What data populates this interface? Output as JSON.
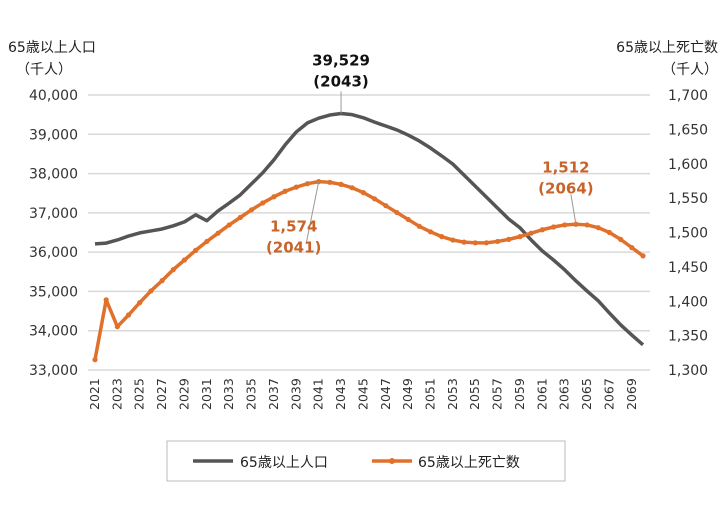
{
  "chart_data": {
    "type": "line",
    "title": "",
    "ylabel_left": [
      "65歳以上人口",
      "（千人）"
    ],
    "ylabel_right": [
      "65歳以上死亡数",
      "（千人）"
    ],
    "ylim_left": [
      33000,
      40000
    ],
    "ylim_right": [
      1300,
      1700
    ],
    "yticks_left": [
      "40,000",
      "39,000",
      "38,000",
      "37,000",
      "36,000",
      "35,000",
      "34,000",
      "33,000"
    ],
    "yticks_right": [
      "1,700",
      "1,650",
      "1,600",
      "1,550",
      "1,500",
      "1,450",
      "1,400",
      "1,350",
      "1,300"
    ],
    "x": [
      2021,
      2022,
      2023,
      2024,
      2025,
      2026,
      2027,
      2028,
      2029,
      2030,
      2031,
      2032,
      2033,
      2034,
      2035,
      2036,
      2037,
      2038,
      2039,
      2040,
      2041,
      2042,
      2043,
      2044,
      2045,
      2046,
      2047,
      2048,
      2049,
      2050,
      2051,
      2052,
      2053,
      2054,
      2055,
      2056,
      2057,
      2058,
      2059,
      2060,
      2061,
      2062,
      2063,
      2064,
      2065,
      2066,
      2067,
      2068,
      2069,
      2070
    ],
    "xtick_labels": [
      "2021",
      "2023",
      "2025",
      "2027",
      "2029",
      "2031",
      "2033",
      "2035",
      "2037",
      "2039",
      "2041",
      "2043",
      "2045",
      "2047",
      "2049",
      "2051",
      "2053",
      "2055",
      "2057",
      "2059",
      "2061",
      "2063",
      "2065",
      "2067",
      "2069"
    ],
    "grid": true,
    "legend_position": "bottom",
    "series": [
      {
        "name": "65歳以上人口",
        "axis": "left",
        "color": "#555555",
        "values": [
          36210,
          36230,
          36310,
          36410,
          36490,
          36540,
          36590,
          36670,
          36770,
          36950,
          36800,
          37050,
          37250,
          37460,
          37740,
          38020,
          38350,
          38730,
          39060,
          39290,
          39410,
          39490,
          39529,
          39500,
          39420,
          39310,
          39210,
          39110,
          38980,
          38830,
          38650,
          38450,
          38240,
          37960,
          37680,
          37400,
          37120,
          36840,
          36620,
          36310,
          36030,
          35800,
          35550,
          35270,
          35010,
          34760,
          34450,
          34150,
          33890,
          33640
        ]
      },
      {
        "name": "65歳以上死亡数",
        "axis": "right",
        "color": "#E0702A",
        "values": [
          1315,
          1402,
          1363,
          1380,
          1398,
          1415,
          1430,
          1446,
          1460,
          1474,
          1487,
          1499,
          1511,
          1522,
          1533,
          1543,
          1552,
          1560,
          1566,
          1571,
          1574,
          1573,
          1570,
          1565,
          1558,
          1549,
          1539,
          1529,
          1519,
          1509,
          1501,
          1494,
          1489,
          1486,
          1485,
          1485,
          1487,
          1490,
          1494,
          1499,
          1504,
          1508,
          1511,
          1512,
          1511,
          1507,
          1500,
          1490,
          1478,
          1466
        ]
      }
    ],
    "annotations": [
      {
        "series": 0,
        "x": 2043,
        "value_label": "39,529",
        "year_label": "(2043)",
        "color": "#111111"
      },
      {
        "series": 1,
        "x": 2041,
        "value_label": "1,574",
        "year_label": "(2041)",
        "color": "#C8632A"
      },
      {
        "series": 1,
        "x": 2064,
        "value_label": "1,512",
        "year_label": "(2064)",
        "color": "#C8632A"
      }
    ]
  }
}
